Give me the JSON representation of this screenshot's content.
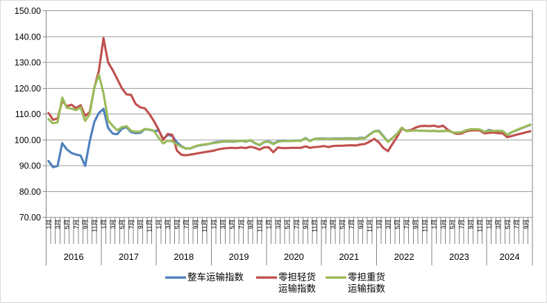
{
  "chart_data": {
    "type": "line",
    "title": "",
    "grid": true,
    "legend_position": "bottom",
    "colors": {
      "blue_series": "#4F81BD",
      "red_series": "#C0504D",
      "green_series": "#9BBB59",
      "gridline": "#9a9a9a",
      "axis": "#808080",
      "text": "#000000",
      "frame_border": "#d9d9d9"
    },
    "y_axis": {
      "min": 70,
      "max": 150,
      "step": 10,
      "tick_labels": [
        "150.00",
        "140.00",
        "130.00",
        "120.00",
        "110.00",
        "100.00",
        "90.00",
        "80.00",
        "70.00"
      ]
    },
    "x_axis": {
      "years": [
        {
          "label": "2016",
          "month_count": 12
        },
        {
          "label": "2017",
          "month_count": 12
        },
        {
          "label": "2018",
          "month_count": 12
        },
        {
          "label": "2019",
          "month_count": 12
        },
        {
          "label": "2020",
          "month_count": 12
        },
        {
          "label": "2021",
          "month_count": 12
        },
        {
          "label": "2022",
          "month_count": 12
        },
        {
          "label": "2023",
          "month_count": 12
        },
        {
          "label": "2024",
          "month_count": 10
        }
      ],
      "labeled_months": [
        1,
        3,
        5,
        7,
        9,
        11
      ],
      "month_suffix": "月"
    },
    "series": [
      {
        "name": "整车运输指数",
        "legend_lines": [
          "整车运输指数"
        ],
        "color": "#4F81BD",
        "values": [
          91.8,
          89.4,
          89.9,
          98.7,
          96.3,
          94.9,
          94.3,
          93.9,
          89.9,
          99.5,
          107.0,
          110.4,
          112.0,
          104.6,
          102.4,
          102.2,
          104.3,
          104.9,
          103.0,
          102.6,
          102.7,
          104.1,
          103.9,
          103.4,
          103.6,
          100.3,
          101.9,
          101.5,
          99.0,
          97.5,
          96.6,
          96.7,
          97.4,
          97.9,
          98.1,
          98.4,
          98.9,
          99.2,
          99.3,
          99.4,
          99.3,
          99.4,
          99.6,
          99.3,
          99.8,
          98.7,
          97.9,
          99.1,
          99.4,
          98.5,
          99.4,
          99.7,
          99.6,
          99.6,
          99.7,
          99.7,
          100.7,
          99.6,
          100.4,
          100.5,
          100.5,
          100.4,
          100.5,
          100.5,
          100.5,
          100.6,
          100.6,
          100.5,
          100.8,
          100.7,
          102.1,
          103.3,
          103.5,
          101.4,
          99.3,
          100.8,
          102.4,
          104.6,
          103.4,
          103.5,
          103.6,
          103.5,
          103.5,
          103.4,
          103.5,
          103.3,
          103.4,
          103.5,
          102.9,
          102.8,
          102.9,
          103.7,
          104.0,
          104.0,
          103.9,
          103.0,
          103.8,
          103.4,
          103.5,
          103.4,
          101.9,
          103.0,
          103.7,
          104.4,
          105.1,
          105.8
        ]
      },
      {
        "name": "零担轻货运输指数",
        "legend_lines": [
          "零担轻货",
          "运输指数"
        ],
        "color": "#C0504D",
        "values": [
          110.4,
          107.8,
          108.2,
          115.2,
          113.0,
          113.6,
          112.3,
          113.4,
          109.3,
          110.7,
          120.2,
          126.8,
          139.4,
          130.0,
          127.0,
          123.5,
          120.0,
          117.6,
          117.4,
          113.9,
          112.6,
          112.2,
          110.0,
          107.2,
          103.9,
          100.0,
          102.3,
          101.9,
          95.8,
          94.2,
          94.0,
          94.3,
          94.6,
          94.9,
          95.2,
          95.5,
          95.8,
          96.3,
          96.6,
          96.8,
          96.9,
          96.8,
          97.0,
          96.8,
          97.3,
          96.9,
          96.2,
          97.1,
          97.1,
          95.2,
          97.0,
          96.8,
          96.8,
          96.9,
          96.9,
          96.9,
          97.5,
          96.9,
          97.2,
          97.3,
          97.6,
          97.2,
          97.6,
          97.7,
          97.7,
          97.8,
          97.9,
          97.8,
          98.2,
          98.4,
          99.3,
          100.4,
          99.0,
          96.8,
          95.6,
          98.5,
          101.2,
          104.4,
          103.5,
          103.8,
          104.7,
          105.3,
          105.4,
          105.3,
          105.5,
          105.0,
          105.5,
          103.9,
          102.9,
          102.3,
          102.4,
          103.3,
          103.6,
          103.7,
          103.6,
          102.5,
          102.7,
          102.8,
          102.6,
          102.5,
          101.0,
          101.5,
          102.0,
          102.4,
          102.9,
          103.3
        ]
      },
      {
        "name": "零担重货运输指数",
        "legend_lines": [
          "零担重货",
          "运输指数"
        ],
        "color": "#9BBB59",
        "values": [
          108.0,
          106.4,
          106.8,
          116.4,
          112.4,
          112.1,
          111.5,
          112.6,
          107.3,
          110.0,
          120.3,
          125.2,
          118.0,
          107.5,
          105.4,
          103.7,
          104.9,
          105.3,
          103.5,
          103.1,
          103.2,
          104.2,
          104.0,
          103.5,
          100.8,
          98.6,
          99.7,
          99.4,
          98.2,
          97.3,
          96.5,
          96.8,
          97.5,
          98.0,
          98.2,
          98.5,
          98.7,
          99.0,
          99.3,
          99.5,
          99.4,
          99.5,
          99.7,
          99.4,
          99.9,
          98.8,
          98.0,
          99.2,
          99.2,
          98.3,
          99.2,
          99.5,
          99.5,
          99.5,
          99.6,
          99.6,
          100.6,
          99.5,
          100.3,
          100.4,
          100.4,
          100.3,
          100.4,
          100.4,
          100.4,
          100.5,
          100.5,
          100.4,
          100.6,
          100.6,
          102.0,
          103.2,
          103.3,
          101.2,
          99.2,
          100.7,
          102.4,
          104.7,
          103.4,
          103.5,
          103.6,
          103.5,
          103.5,
          103.4,
          103.4,
          103.3,
          103.4,
          103.5,
          102.9,
          102.8,
          102.9,
          103.7,
          104.1,
          104.1,
          104.0,
          103.1,
          103.5,
          103.4,
          103.5,
          103.4,
          101.9,
          103.0,
          103.8,
          104.5,
          105.2,
          105.9
        ]
      }
    ]
  }
}
